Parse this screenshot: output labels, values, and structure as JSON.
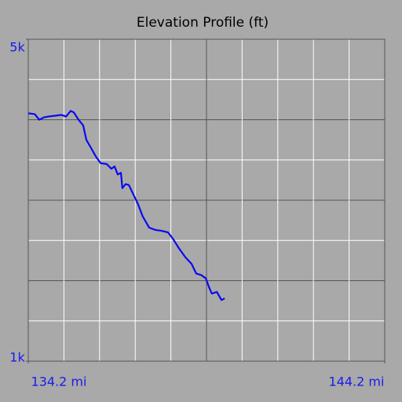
{
  "chart_data": {
    "type": "line",
    "title": "Elevation Profile (ft)",
    "xlim": [
      134.2,
      144.2
    ],
    "ylim": [
      1000,
      5000
    ],
    "xticks": [
      {
        "value": 134.2,
        "label": "134.2 mi"
      },
      {
        "value": 144.2,
        "label": "144.2 mi"
      }
    ],
    "yticks": [
      {
        "value": 5000,
        "label": "5k"
      },
      {
        "value": 1000,
        "label": "1k"
      }
    ],
    "grid": true,
    "series": [
      {
        "color": "#0a0af0",
        "x": [
          134.2,
          134.38,
          134.51,
          134.64,
          134.77,
          134.95,
          135.13,
          135.26,
          135.39,
          135.48,
          135.61,
          135.74,
          135.83,
          135.96,
          136.1,
          136.23,
          136.4,
          136.53,
          136.62,
          136.71,
          136.8,
          136.84,
          136.93,
          137.02,
          137.15,
          137.28,
          137.41,
          137.59,
          137.77,
          137.94,
          138.12,
          138.26,
          138.43,
          138.61,
          138.78,
          138.91,
          139.05,
          139.18,
          139.27,
          139.35,
          139.49,
          139.62,
          139.71
        ],
        "values": [
          4080,
          4070,
          4000,
          4030,
          4040,
          4050,
          4060,
          4040,
          4110,
          4090,
          4000,
          3930,
          3750,
          3650,
          3540,
          3460,
          3450,
          3390,
          3420,
          3320,
          3340,
          3150,
          3200,
          3190,
          3070,
          2950,
          2800,
          2660,
          2630,
          2620,
          2600,
          2520,
          2400,
          2290,
          2210,
          2090,
          2070,
          2030,
          1920,
          1840,
          1860,
          1760,
          1780
        ]
      }
    ]
  }
}
